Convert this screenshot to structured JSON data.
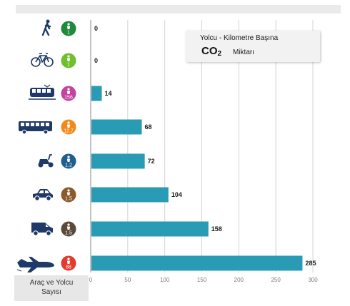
{
  "header": {
    "title_line1": "Yolcu - Kilometre Başına",
    "title_co": "CO",
    "title_sub": "2",
    "title_line2": "Miktarı"
  },
  "legend_label": {
    "line1": "Araç ve Yolcu",
    "line2": "Sayısı"
  },
  "rows": [
    {
      "vehicle_icon": "pedestrian-icon",
      "count": "1",
      "badge_color": "#1f8a3c"
    },
    {
      "vehicle_icon": "bicycle-icon",
      "count": "1",
      "badge_color": "#6fbf2e"
    },
    {
      "vehicle_icon": "tram-icon",
      "count": "156",
      "badge_color": "#c2449e"
    },
    {
      "vehicle_icon": "bus-icon",
      "count": "12.7",
      "badge_color": "#f08a1c"
    },
    {
      "vehicle_icon": "scooter-icon",
      "count": "1.2",
      "badge_color": "#1f5f8f"
    },
    {
      "vehicle_icon": "car-icon",
      "count": "1.5",
      "badge_color": "#8b5a2b"
    },
    {
      "vehicle_icon": "van-icon",
      "count": "1.5",
      "badge_color": "#5b4a3c"
    },
    {
      "vehicle_icon": "airplane-icon",
      "count": "88",
      "badge_color": "#e33a2e"
    }
  ],
  "chart_data": {
    "type": "bar",
    "orientation": "horizontal",
    "categories": [
      "",
      "",
      "",
      "",
      "",
      "",
      "",
      ""
    ],
    "values": [
      0,
      0,
      14,
      68,
      72,
      104,
      158,
      285
    ],
    "value_labels": [
      "0",
      "0",
      "14",
      "68",
      "72",
      "104",
      "158",
      "285"
    ],
    "xlim": [
      0,
      300
    ],
    "xticks": [
      "0",
      "50",
      "100",
      "150",
      "200",
      "250",
      "300"
    ],
    "grid": true,
    "bar_color": "#2a9bb4"
  }
}
